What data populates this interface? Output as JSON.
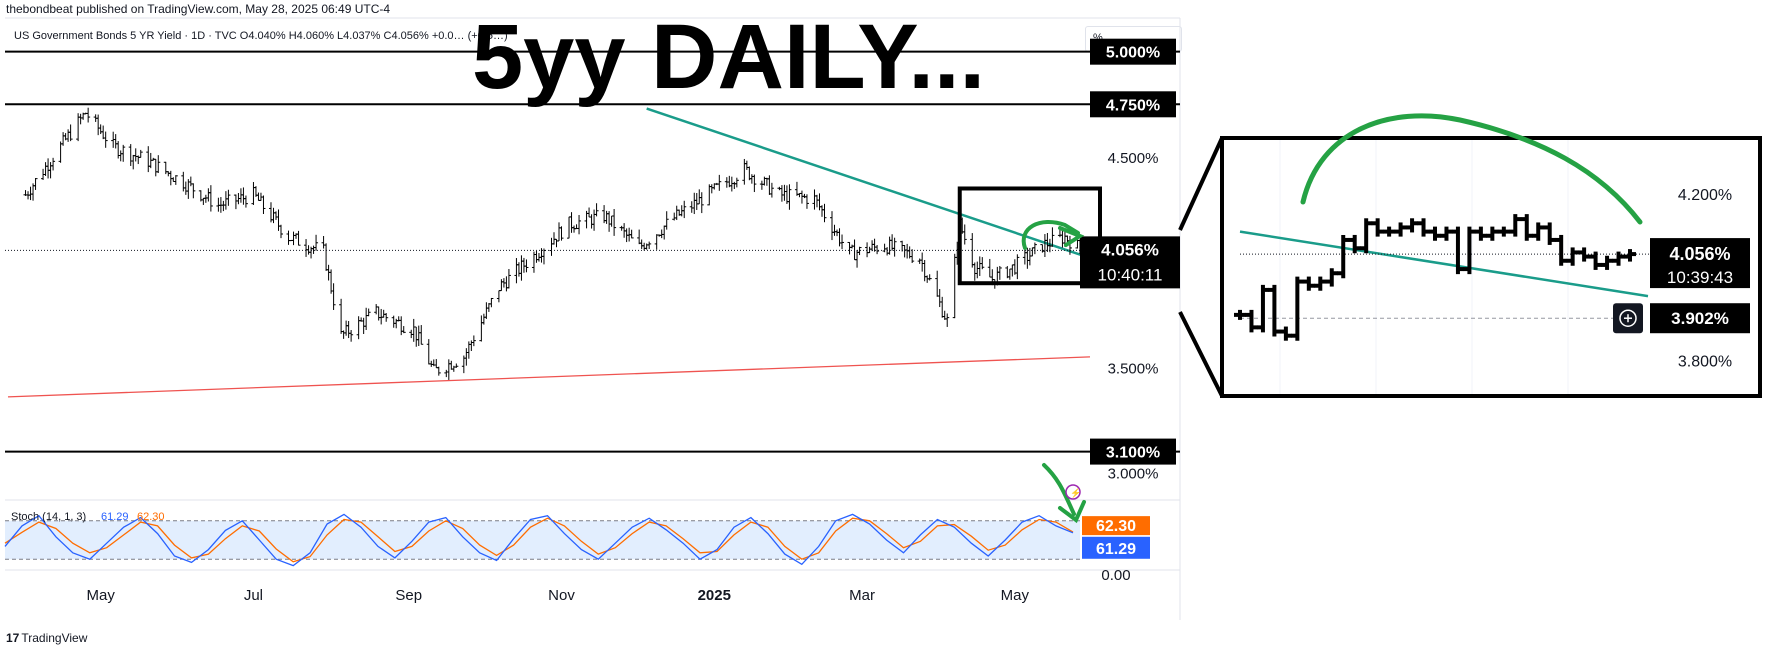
{
  "header": {
    "publisher": "thebondbeat published on TradingView.com, May 28, 2025 06:49 UTC-4",
    "symbol_line": "US Government Bonds 5 YR Yield · 1D · TVC  O4.040%  H4.060%  L4.037%  C4.056%  +0.0…  (+0.5…)",
    "overlay_title": "5yy DAILY...",
    "unit_selector": "%"
  },
  "footer": {
    "logo": "17",
    "brand": "TradingView"
  },
  "colors": {
    "price_bars": "#000000",
    "trendline": "#1a9c8a",
    "support_line": "#ef5350",
    "annotation_green": "#25a244",
    "stoch_k": "#2962ff",
    "stoch_d": "#ff6d00",
    "stoch_band": "#dbeafe",
    "price_label_bg": "#000000"
  },
  "chart_data": [
    {
      "type": "line",
      "panel": "main price chart (daily bars)",
      "price_axis_labels": [
        "4.500%",
        "3.500%",
        "3.000%"
      ],
      "horizontal_levels": [
        "5.000%",
        "4.750%",
        "3.100%"
      ],
      "current_price": "4.056%",
      "countdown": "10:40:11",
      "time_axis": [
        "May",
        "Jul",
        "Sep",
        "Nov",
        "2025",
        "Mar",
        "May"
      ],
      "ylim": [
        2.87,
        5.16
      ],
      "series": [
        {
          "x": [
            "2024-04-01",
            "2024-04-15",
            "2024-04-25",
            "2024-05-06",
            "2024-05-20",
            "2024-06-03",
            "2024-06-17",
            "2024-07-01",
            "2024-07-15",
            "2024-07-29",
            "2024-08-05",
            "2024-08-19",
            "2024-09-03",
            "2024-09-11",
            "2024-09-23",
            "2024-10-07",
            "2024-10-21",
            "2024-11-04",
            "2024-11-18",
            "2024-12-02",
            "2024-12-16",
            "2025-01-02",
            "2025-01-13",
            "2025-01-27",
            "2025-02-10",
            "2025-02-24",
            "2025-03-10",
            "2025-03-24",
            "2025-04-04",
            "2025-04-09",
            "2025-04-15",
            "2025-04-22",
            "2025-05-01",
            "2025-05-12",
            "2025-05-21",
            "2025-05-28"
          ],
          "values": [
            4.32,
            4.55,
            4.71,
            4.55,
            4.48,
            4.38,
            4.27,
            4.32,
            4.12,
            4.05,
            3.65,
            3.76,
            3.68,
            3.48,
            3.55,
            3.88,
            4.03,
            4.18,
            4.22,
            4.07,
            4.21,
            4.35,
            4.44,
            4.32,
            4.3,
            4.04,
            4.08,
            4.02,
            3.72,
            4.18,
            3.98,
            3.92,
            3.98,
            4.08,
            4.12,
            4.056
          ]
        }
      ],
      "trendlines": [
        {
          "name": "falling resistance",
          "from": [
            "2024-12-05",
            4.73
          ],
          "to": [
            "2025-05-31",
            4.02
          ]
        },
        {
          "name": "rising support",
          "from": [
            "2024-03-25",
            3.36
          ],
          "to": [
            "2025-05-31",
            3.55
          ]
        }
      ]
    },
    {
      "type": "line",
      "panel": "stochastic oscillator",
      "legend": "Stoch (14, 1, 3)",
      "k_value": "61.29",
      "d_value": "62.30",
      "axis_labels": [
        "0.00"
      ],
      "ylim": [
        0,
        100
      ],
      "bands": [
        80,
        20
      ],
      "series": [
        {
          "name": "%K",
          "values": [
            40,
            72,
            88,
            55,
            30,
            20,
            45,
            70,
            85,
            60,
            25,
            15,
            35,
            65,
            80,
            50,
            20,
            10,
            30,
            75,
            90,
            70,
            40,
            22,
            48,
            78,
            85,
            55,
            30,
            18,
            52,
            82,
            88,
            60,
            35,
            20,
            45,
            70,
            84,
            66,
            45,
            20,
            35,
            70,
            85,
            60,
            28,
            12,
            40,
            80,
            90,
            75,
            50,
            30,
            58,
            82,
            70,
            45,
            25,
            50,
            78,
            88,
            72,
            61.29
          ]
        },
        {
          "name": "%D",
          "values": [
            45,
            62,
            78,
            68,
            45,
            30,
            38,
            58,
            78,
            72,
            42,
            22,
            28,
            52,
            72,
            64,
            36,
            16,
            24,
            58,
            82,
            78,
            55,
            32,
            40,
            64,
            80,
            68,
            42,
            26,
            42,
            70,
            84,
            72,
            48,
            28,
            38,
            60,
            78,
            72,
            52,
            30,
            32,
            58,
            78,
            70,
            40,
            20,
            30,
            64,
            84,
            80,
            60,
            38,
            48,
            72,
            74,
            56,
            34,
            42,
            66,
            82,
            78,
            62.3
          ]
        }
      ]
    },
    {
      "type": "line",
      "panel": "zoom inset (last ~5 weeks)",
      "axis_labels": [
        "4.200%",
        "3.800%"
      ],
      "current_price": "4.056%",
      "countdown": "10:39:43",
      "crosshair_price": "3.902%",
      "ylim": [
        3.72,
        4.33
      ],
      "series": [
        {
          "values": [
            3.91,
            3.88,
            3.97,
            3.87,
            3.86,
            3.99,
            3.98,
            3.99,
            4.01,
            4.09,
            4.07,
            4.13,
            4.11,
            4.11,
            4.12,
            4.13,
            4.11,
            4.1,
            4.11,
            4.02,
            4.11,
            4.1,
            4.11,
            4.11,
            4.14,
            4.1,
            4.12,
            4.09,
            4.04,
            4.06,
            4.05,
            4.03,
            4.04,
            4.05,
            4.056
          ]
        }
      ]
    }
  ]
}
